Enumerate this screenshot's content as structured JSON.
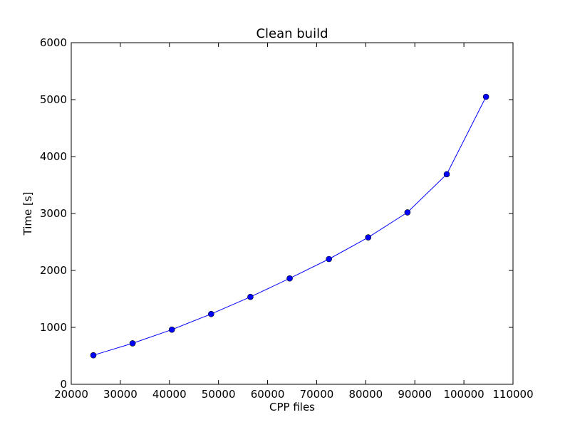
{
  "chart_data": {
    "type": "line",
    "title": "Clean build",
    "xlabel": "CPP files",
    "ylabel": "Time [s]",
    "xlim": [
      20000,
      110000
    ],
    "ylim": [
      0,
      6000
    ],
    "x_ticks": [
      20000,
      30000,
      40000,
      50000,
      60000,
      70000,
      80000,
      90000,
      100000,
      110000
    ],
    "y_ticks": [
      0,
      1000,
      2000,
      3000,
      4000,
      5000,
      6000
    ],
    "grid": false,
    "legend": "none",
    "series": [
      {
        "color": "#0000ff",
        "marker": "circle",
        "points": [
          {
            "x": 24500,
            "y": 510
          },
          {
            "x": 32500,
            "y": 720
          },
          {
            "x": 40500,
            "y": 960
          },
          {
            "x": 48500,
            "y": 1235
          },
          {
            "x": 56500,
            "y": 1535
          },
          {
            "x": 64500,
            "y": 1860
          },
          {
            "x": 72500,
            "y": 2200
          },
          {
            "x": 80500,
            "y": 2580
          },
          {
            "x": 88500,
            "y": 3020
          },
          {
            "x": 96500,
            "y": 3690
          },
          {
            "x": 104500,
            "y": 5050
          }
        ]
      }
    ]
  }
}
